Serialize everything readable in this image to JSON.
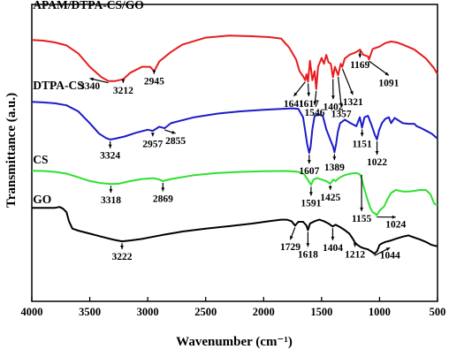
{
  "chart_data": {
    "type": "line",
    "xlabel": "Wavenumber (cm⁻¹)",
    "ylabel": "Transmittance (a.u.)",
    "xlim": [
      4000,
      500
    ],
    "x_reversed": true,
    "xticks": [
      "4000",
      "3500",
      "3000",
      "2500",
      "2000",
      "1500",
      "1000",
      "500"
    ],
    "ylim": [
      0,
      1
    ],
    "yticks_shown": false,
    "grid": false,
    "legend": "series names printed beside each curve",
    "series": [
      {
        "name": "APAM/DTPA-CS/GO",
        "color": "#e81c1c",
        "label_x": 3990,
        "label_y": 0.985,
        "points": [
          [
            4000,
            0.88
          ],
          [
            3900,
            0.878
          ],
          [
            3800,
            0.872
          ],
          [
            3700,
            0.862
          ],
          [
            3600,
            0.835
          ],
          [
            3500,
            0.79
          ],
          [
            3400,
            0.755
          ],
          [
            3340,
            0.742
          ],
          [
            3280,
            0.742
          ],
          [
            3212,
            0.748
          ],
          [
            3150,
            0.77
          ],
          [
            3050,
            0.79
          ],
          [
            2980,
            0.79
          ],
          [
            2945,
            0.775
          ],
          [
            2900,
            0.808
          ],
          [
            2800,
            0.84
          ],
          [
            2700,
            0.865
          ],
          [
            2500,
            0.888
          ],
          [
            2300,
            0.895
          ],
          [
            2100,
            0.893
          ],
          [
            1950,
            0.89
          ],
          [
            1850,
            0.885
          ],
          [
            1780,
            0.855
          ],
          [
            1720,
            0.815
          ],
          [
            1690,
            0.775
          ],
          [
            1660,
            0.758
          ],
          [
            1641,
            0.745
          ],
          [
            1630,
            0.765
          ],
          [
            1617,
            0.74
          ],
          [
            1600,
            0.81
          ],
          [
            1580,
            0.745
          ],
          [
            1560,
            0.775
          ],
          [
            1546,
            0.715
          ],
          [
            1530,
            0.79
          ],
          [
            1500,
            0.82
          ],
          [
            1480,
            0.8
          ],
          [
            1460,
            0.83
          ],
          [
            1440,
            0.805
          ],
          [
            1420,
            0.8
          ],
          [
            1402,
            0.755
          ],
          [
            1385,
            0.79
          ],
          [
            1357,
            0.762
          ],
          [
            1335,
            0.8
          ],
          [
            1321,
            0.79
          ],
          [
            1300,
            0.818
          ],
          [
            1260,
            0.83
          ],
          [
            1200,
            0.84
          ],
          [
            1169,
            0.848
          ],
          [
            1140,
            0.83
          ],
          [
            1100,
            0.825
          ],
          [
            1091,
            0.815
          ],
          [
            1060,
            0.85
          ],
          [
            1000,
            0.858
          ],
          [
            950,
            0.87
          ],
          [
            900,
            0.875
          ],
          [
            850,
            0.872
          ],
          [
            800,
            0.865
          ],
          [
            700,
            0.848
          ],
          [
            600,
            0.818
          ],
          [
            530,
            0.785
          ],
          [
            500,
            0.765
          ]
        ]
      },
      {
        "name": "DTPA-CS",
        "color": "#1c1cc8",
        "label_x": 3990,
        "label_y": 0.715,
        "points": [
          [
            4000,
            0.672
          ],
          [
            3900,
            0.67
          ],
          [
            3800,
            0.667
          ],
          [
            3700,
            0.66
          ],
          [
            3600,
            0.64
          ],
          [
            3500,
            0.6
          ],
          [
            3420,
            0.565
          ],
          [
            3360,
            0.55
          ],
          [
            3324,
            0.545
          ],
          [
            3280,
            0.548
          ],
          [
            3200,
            0.555
          ],
          [
            3100,
            0.568
          ],
          [
            3000,
            0.578
          ],
          [
            2957,
            0.574
          ],
          [
            2900,
            0.588
          ],
          [
            2855,
            0.583
          ],
          [
            2800,
            0.6
          ],
          [
            2600,
            0.62
          ],
          [
            2400,
            0.632
          ],
          [
            2200,
            0.64
          ],
          [
            2000,
            0.645
          ],
          [
            1850,
            0.648
          ],
          [
            1750,
            0.65
          ],
          [
            1700,
            0.648
          ],
          [
            1660,
            0.62
          ],
          [
            1640,
            0.57
          ],
          [
            1625,
            0.53
          ],
          [
            1607,
            0.5
          ],
          [
            1595,
            0.52
          ],
          [
            1580,
            0.58
          ],
          [
            1560,
            0.625
          ],
          [
            1520,
            0.628
          ],
          [
            1490,
            0.625
          ],
          [
            1460,
            0.58
          ],
          [
            1420,
            0.54
          ],
          [
            1400,
            0.52
          ],
          [
            1389,
            0.502
          ],
          [
            1375,
            0.53
          ],
          [
            1360,
            0.57
          ],
          [
            1340,
            0.6
          ],
          [
            1300,
            0.612
          ],
          [
            1250,
            0.6
          ],
          [
            1200,
            0.59
          ],
          [
            1170,
            0.62
          ],
          [
            1151,
            0.585
          ],
          [
            1130,
            0.62
          ],
          [
            1100,
            0.625
          ],
          [
            1070,
            0.595
          ],
          [
            1040,
            0.56
          ],
          [
            1022,
            0.545
          ],
          [
            1005,
            0.575
          ],
          [
            980,
            0.6
          ],
          [
            950,
            0.615
          ],
          [
            920,
            0.62
          ],
          [
            900,
            0.6
          ],
          [
            870,
            0.618
          ],
          [
            840,
            0.61
          ],
          [
            800,
            0.6
          ],
          [
            750,
            0.598
          ],
          [
            700,
            0.598
          ],
          [
            680,
            0.59
          ],
          [
            650,
            0.585
          ],
          [
            600,
            0.575
          ],
          [
            550,
            0.565
          ],
          [
            500,
            0.548
          ]
        ]
      },
      {
        "name": "CS",
        "color": "#2fe02f",
        "label_x": 3990,
        "label_y": 0.465,
        "points": [
          [
            4000,
            0.44
          ],
          [
            3900,
            0.439
          ],
          [
            3800,
            0.436
          ],
          [
            3700,
            0.43
          ],
          [
            3600,
            0.418
          ],
          [
            3500,
            0.405
          ],
          [
            3400,
            0.398
          ],
          [
            3318,
            0.395
          ],
          [
            3250,
            0.396
          ],
          [
            3150,
            0.405
          ],
          [
            3050,
            0.412
          ],
          [
            2950,
            0.415
          ],
          [
            2900,
            0.41
          ],
          [
            2869,
            0.405
          ],
          [
            2800,
            0.412
          ],
          [
            2600,
            0.425
          ],
          [
            2400,
            0.432
          ],
          [
            2200,
            0.436
          ],
          [
            2000,
            0.438
          ],
          [
            1800,
            0.439
          ],
          [
            1700,
            0.436
          ],
          [
            1650,
            0.428
          ],
          [
            1620,
            0.41
          ],
          [
            1600,
            0.398
          ],
          [
            1591,
            0.392
          ],
          [
            1570,
            0.41
          ],
          [
            1540,
            0.415
          ],
          [
            1500,
            0.41
          ],
          [
            1460,
            0.405
          ],
          [
            1425,
            0.396
          ],
          [
            1400,
            0.41
          ],
          [
            1380,
            0.405
          ],
          [
            1340,
            0.418
          ],
          [
            1300,
            0.425
          ],
          [
            1250,
            0.43
          ],
          [
            1200,
            0.432
          ],
          [
            1170,
            0.428
          ],
          [
            1155,
            0.415
          ],
          [
            1140,
            0.39
          ],
          [
            1110,
            0.35
          ],
          [
            1080,
            0.315
          ],
          [
            1060,
            0.3
          ],
          [
            1045,
            0.298
          ],
          [
            1024,
            0.29
          ],
          [
            1000,
            0.305
          ],
          [
            960,
            0.32
          ],
          [
            930,
            0.345
          ],
          [
            900,
            0.365
          ],
          [
            860,
            0.375
          ],
          [
            800,
            0.37
          ],
          [
            750,
            0.37
          ],
          [
            700,
            0.372
          ],
          [
            650,
            0.375
          ],
          [
            600,
            0.375
          ],
          [
            560,
            0.36
          ],
          [
            530,
            0.33
          ],
          [
            510,
            0.325
          ],
          [
            500,
            0.325
          ]
        ]
      },
      {
        "name": "GO",
        "color": "#000000",
        "label_x": 3990,
        "label_y": 0.33,
        "points": [
          [
            4000,
            0.315
          ],
          [
            3900,
            0.315
          ],
          [
            3800,
            0.315
          ],
          [
            3760,
            0.318
          ],
          [
            3730,
            0.312
          ],
          [
            3700,
            0.3
          ],
          [
            3680,
            0.27
          ],
          [
            3650,
            0.245
          ],
          [
            3600,
            0.238
          ],
          [
            3500,
            0.228
          ],
          [
            3400,
            0.218
          ],
          [
            3300,
            0.208
          ],
          [
            3222,
            0.202
          ],
          [
            3150,
            0.205
          ],
          [
            3050,
            0.21
          ],
          [
            2950,
            0.218
          ],
          [
            2850,
            0.225
          ],
          [
            2700,
            0.235
          ],
          [
            2500,
            0.245
          ],
          [
            2300,
            0.253
          ],
          [
            2100,
            0.262
          ],
          [
            1950,
            0.27
          ],
          [
            1850,
            0.275
          ],
          [
            1800,
            0.275
          ],
          [
            1760,
            0.27
          ],
          [
            1729,
            0.255
          ],
          [
            1700,
            0.268
          ],
          [
            1660,
            0.268
          ],
          [
            1630,
            0.255
          ],
          [
            1618,
            0.24
          ],
          [
            1600,
            0.262
          ],
          [
            1560,
            0.27
          ],
          [
            1520,
            0.275
          ],
          [
            1480,
            0.27
          ],
          [
            1440,
            0.262
          ],
          [
            1404,
            0.252
          ],
          [
            1380,
            0.258
          ],
          [
            1340,
            0.25
          ],
          [
            1300,
            0.24
          ],
          [
            1260,
            0.228
          ],
          [
            1230,
            0.21
          ],
          [
            1212,
            0.198
          ],
          [
            1190,
            0.19
          ],
          [
            1160,
            0.182
          ],
          [
            1130,
            0.178
          ],
          [
            1100,
            0.175
          ],
          [
            1070,
            0.168
          ],
          [
            1044,
            0.16
          ],
          [
            1020,
            0.17
          ],
          [
            1000,
            0.19
          ],
          [
            980,
            0.195
          ],
          [
            950,
            0.2
          ],
          [
            900,
            0.205
          ],
          [
            850,
            0.212
          ],
          [
            800,
            0.218
          ],
          [
            750,
            0.222
          ],
          [
            700,
            0.215
          ],
          [
            650,
            0.208
          ],
          [
            600,
            0.2
          ],
          [
            550,
            0.19
          ],
          [
            500,
            0.185
          ]
        ]
      }
    ],
    "peak_labels": [
      {
        "text": "3340",
        "x": 3340,
        "y": 0.742,
        "tx": 3500,
        "ty": 0.715
      },
      {
        "text": "3212",
        "x": 3212,
        "y": 0.748,
        "tx": 3212,
        "ty": 0.7
      },
      {
        "text": "2945",
        "x": 2945,
        "y": 0.775,
        "tx": 2945,
        "ty": 0.73
      },
      {
        "text": "1641",
        "x": 1641,
        "y": 0.745,
        "tx": 1740,
        "ty": 0.655
      },
      {
        "text": "1617",
        "x": 1617,
        "y": 0.74,
        "tx": 1610,
        "ty": 0.655
      },
      {
        "text": "1546",
        "x": 1546,
        "y": 0.715,
        "tx": 1560,
        "ty": 0.625
      },
      {
        "text": "1402",
        "x": 1402,
        "y": 0.755,
        "tx": 1400,
        "ty": 0.645
      },
      {
        "text": "1357",
        "x": 1357,
        "y": 0.762,
        "tx": 1330,
        "ty": 0.62
      },
      {
        "text": "1321",
        "x": 1321,
        "y": 0.79,
        "tx": 1230,
        "ty": 0.66
      },
      {
        "text": "1169",
        "x": 1169,
        "y": 0.848,
        "tx": 1169,
        "ty": 0.785
      },
      {
        "text": "1091",
        "x": 1091,
        "y": 0.815,
        "tx": 920,
        "ty": 0.725
      },
      {
        "text": "3324",
        "x": 3324,
        "y": 0.545,
        "tx": 3324,
        "ty": 0.48
      },
      {
        "text": "2957",
        "x": 2957,
        "y": 0.574,
        "tx": 2957,
        "ty": 0.52
      },
      {
        "text": "2855",
        "x": 2855,
        "y": 0.583,
        "tx": 2760,
        "ty": 0.53
      },
      {
        "text": "1607",
        "x": 1607,
        "y": 0.5,
        "tx": 1607,
        "ty": 0.428
      },
      {
        "text": "1389",
        "x": 1389,
        "y": 0.502,
        "tx": 1389,
        "ty": 0.44
      },
      {
        "text": "1151",
        "x": 1151,
        "y": 0.585,
        "tx": 1151,
        "ty": 0.52
      },
      {
        "text": "1022",
        "x": 1022,
        "y": 0.545,
        "tx": 1022,
        "ty": 0.458
      },
      {
        "text": "3318",
        "x": 3318,
        "y": 0.395,
        "tx": 3318,
        "ty": 0.33
      },
      {
        "text": "2869",
        "x": 2869,
        "y": 0.405,
        "tx": 2869,
        "ty": 0.335
      },
      {
        "text": "1591",
        "x": 1591,
        "y": 0.392,
        "tx": 1591,
        "ty": 0.32
      },
      {
        "text": "1425",
        "x": 1425,
        "y": 0.396,
        "tx": 1425,
        "ty": 0.34
      },
      {
        "text": "1155",
        "x": 1155,
        "y": 0.432,
        "tx": 1155,
        "ty": 0.268
      },
      {
        "text": "1024",
        "x": 1024,
        "y": 0.29,
        "tx": 860,
        "ty": 0.248
      },
      {
        "text": "3222",
        "x": 3222,
        "y": 0.202,
        "tx": 3222,
        "ty": 0.14
      },
      {
        "text": "1729",
        "x": 1729,
        "y": 0.255,
        "tx": 1770,
        "ty": 0.172
      },
      {
        "text": "1618",
        "x": 1618,
        "y": 0.24,
        "tx": 1618,
        "ty": 0.148
      },
      {
        "text": "1404",
        "x": 1404,
        "y": 0.252,
        "tx": 1404,
        "ty": 0.17
      },
      {
        "text": "1212",
        "x": 1212,
        "y": 0.198,
        "tx": 1212,
        "ty": 0.148
      },
      {
        "text": "1044",
        "x": 1044,
        "y": 0.16,
        "tx": 910,
        "ty": 0.145
      }
    ]
  }
}
